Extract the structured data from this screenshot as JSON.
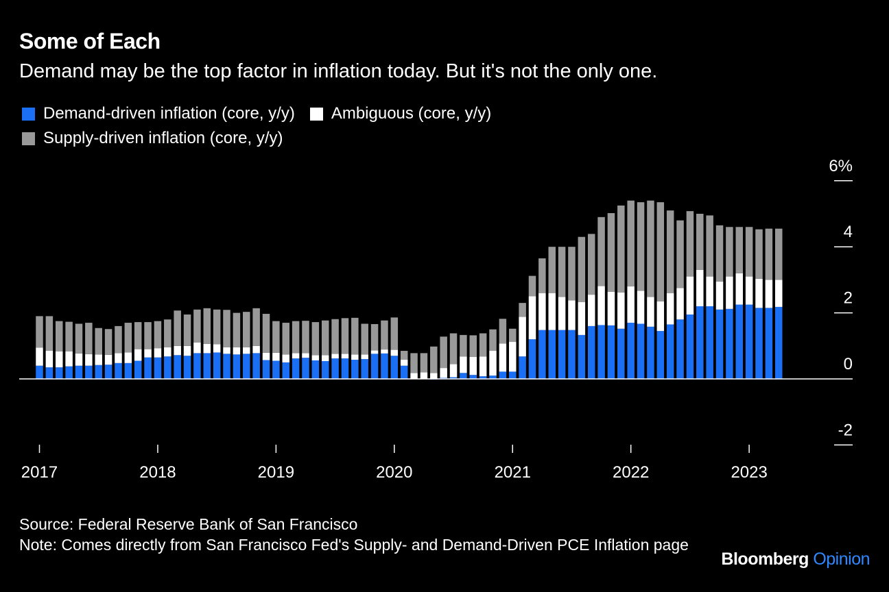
{
  "header": {
    "title": "Some of Each",
    "subtitle": "Demand may be the top factor in inflation today. But it's not the only one."
  },
  "footer": {
    "source": "Source: Federal Reserve Bank of San Francisco",
    "note": "Note: Comes directly from San Francisco Fed's Supply- and Demand-Driven PCE Inflation page"
  },
  "brand": {
    "name": "Bloomberg",
    "suffix": "Opinion"
  },
  "colors": {
    "demand": "#1a6ff5",
    "ambiguous": "#ffffff",
    "supply": "#999999",
    "background": "#000000"
  },
  "chart_data": {
    "type": "bar",
    "stacked": true,
    "start_month": "2017-01",
    "x_ticks": [
      "2017",
      "2018",
      "2019",
      "2020",
      "2021",
      "2022",
      "2023"
    ],
    "y_ticks": [
      "-2",
      "0",
      "2",
      "4",
      "6%"
    ],
    "y_tick_values": [
      -2,
      0,
      2,
      4,
      6
    ],
    "ylim": [
      -2.2,
      6.3
    ],
    "grid": false,
    "legend_position": "top",
    "series": [
      {
        "name": "Demand-driven inflation (core, y/y)",
        "color": "#1a6ff5",
        "values": [
          0.4,
          0.35,
          0.35,
          0.38,
          0.4,
          0.4,
          0.42,
          0.43,
          0.48,
          0.48,
          0.55,
          0.65,
          0.65,
          0.68,
          0.72,
          0.7,
          0.78,
          0.78,
          0.8,
          0.76,
          0.74,
          0.76,
          0.78,
          0.57,
          0.55,
          0.5,
          0.62,
          0.64,
          0.56,
          0.54,
          0.62,
          0.62,
          0.58,
          0.6,
          0.76,
          0.77,
          0.7,
          0.4,
          0.0,
          0.0,
          -0.02,
          0.03,
          0.05,
          0.18,
          0.12,
          0.08,
          0.1,
          0.22,
          0.22,
          0.68,
          1.2,
          1.48,
          1.48,
          1.48,
          1.48,
          1.33,
          1.6,
          1.63,
          1.62,
          1.52,
          1.7,
          1.67,
          1.58,
          1.45,
          1.65,
          1.8,
          1.95,
          2.2,
          2.2,
          2.1,
          2.12,
          2.25,
          2.25,
          2.15,
          2.15,
          2.18
        ]
      },
      {
        "name": "Ambiguous (core, y/y)",
        "color": "#ffffff",
        "values": [
          0.55,
          0.5,
          0.48,
          0.45,
          0.37,
          0.35,
          0.32,
          0.3,
          0.3,
          0.32,
          0.35,
          0.25,
          0.28,
          0.28,
          0.28,
          0.3,
          0.32,
          0.28,
          0.25,
          0.2,
          0.22,
          0.2,
          0.22,
          0.22,
          0.24,
          0.24,
          0.16,
          0.14,
          0.16,
          0.18,
          0.14,
          0.14,
          0.16,
          0.14,
          0.1,
          0.12,
          0.18,
          0.18,
          0.18,
          0.2,
          0.18,
          0.3,
          0.4,
          0.5,
          0.55,
          0.6,
          0.75,
          0.85,
          0.9,
          1.2,
          1.3,
          1.12,
          1.12,
          1.0,
          0.9,
          1.0,
          0.95,
          1.18,
          1.02,
          1.1,
          1.1,
          1.0,
          0.9,
          0.9,
          0.95,
          0.95,
          1.15,
          1.1,
          0.9,
          0.85,
          0.98,
          0.95,
          0.85,
          0.88,
          0.85,
          0.82
        ]
      },
      {
        "name": "Supply-driven inflation (core, y/y)",
        "color": "#999999",
        "values": [
          0.95,
          1.05,
          0.92,
          0.9,
          0.9,
          0.95,
          0.8,
          0.78,
          0.82,
          0.9,
          0.82,
          0.82,
          0.82,
          0.84,
          1.07,
          0.95,
          1.0,
          1.08,
          1.05,
          1.13,
          1.04,
          1.07,
          1.14,
          1.18,
          0.96,
          0.96,
          0.97,
          0.98,
          1.0,
          1.05,
          1.05,
          1.08,
          1.11,
          0.93,
          0.8,
          0.88,
          0.98,
          0.27,
          0.6,
          0.58,
          0.8,
          0.95,
          0.93,
          0.65,
          0.65,
          0.7,
          0.65,
          0.75,
          0.4,
          0.42,
          0.62,
          1.05,
          1.4,
          1.52,
          1.62,
          1.97,
          1.84,
          2.09,
          2.38,
          2.63,
          2.6,
          2.68,
          2.92,
          3.0,
          2.5,
          2.05,
          1.98,
          1.7,
          1.85,
          1.7,
          1.5,
          1.4,
          1.5,
          1.5,
          1.55,
          1.55
        ]
      }
    ]
  }
}
